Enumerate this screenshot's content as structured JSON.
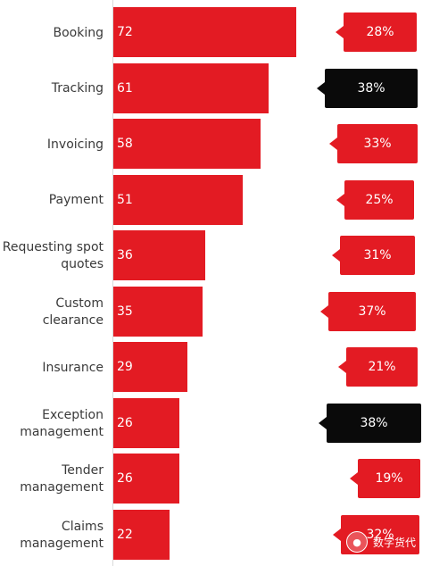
{
  "chart_data": {
    "type": "bar",
    "orientation": "horizontal",
    "categories": [
      "Booking",
      "Tracking",
      "Invoicing",
      "Payment",
      "Requesting spot\nquotes",
      "Custom\nclearance",
      "Insurance",
      "Exception\nmanagement",
      "Tender\nmanagement",
      "Claims\nmanagement"
    ],
    "values": [
      72,
      61,
      58,
      51,
      36,
      35,
      29,
      26,
      26,
      22
    ],
    "value_labels": [
      "72",
      "61",
      "58",
      "51",
      "36",
      "35",
      "29",
      "26",
      "26",
      "22"
    ],
    "callouts": [
      {
        "label": "28%",
        "value": 28,
        "highlight": false
      },
      {
        "label": "38%",
        "value": 38,
        "highlight": true
      },
      {
        "label": "33%",
        "value": 33,
        "highlight": false
      },
      {
        "label": "25%",
        "value": 25,
        "highlight": false
      },
      {
        "label": "31%",
        "value": 31,
        "highlight": false
      },
      {
        "label": "37%",
        "value": 37,
        "highlight": false
      },
      {
        "label": "21%",
        "value": 21,
        "highlight": false
      },
      {
        "label": "38%",
        "value": 38,
        "highlight": true
      },
      {
        "label": "19%",
        "value": 19,
        "highlight": false
      },
      {
        "label": "32%",
        "value": 32,
        "highlight": false
      }
    ],
    "xlim": [
      0,
      72
    ],
    "grid": false,
    "colors": {
      "bar": "#e31b23",
      "callout": "#e31b23",
      "callout_highlight": "#0a0a0a",
      "label": "#3a3a3a"
    }
  },
  "watermark": {
    "text": "数字货代",
    "icon": "wechat-icon"
  }
}
